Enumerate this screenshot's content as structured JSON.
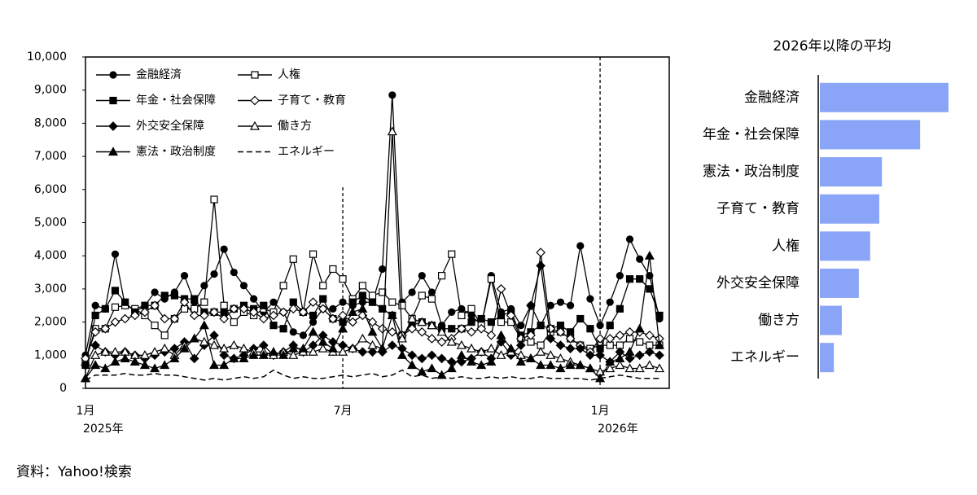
{
  "chart_data": [
    {
      "type": "line",
      "categories": [
        "1月",
        null,
        null,
        null,
        null,
        null,
        null,
        null,
        null,
        null,
        null,
        null,
        null,
        null,
        null,
        null,
        null,
        null,
        null,
        null,
        null,
        null,
        null,
        null,
        null,
        null,
        "7月",
        null,
        null,
        null,
        null,
        null,
        null,
        null,
        null,
        null,
        null,
        null,
        null,
        null,
        null,
        null,
        null,
        null,
        null,
        null,
        null,
        null,
        null,
        null,
        null,
        null,
        "1月",
        null,
        null,
        null,
        null,
        null,
        null
      ],
      "category_years": [
        "2025年",
        null,
        null,
        null,
        null,
        null,
        null,
        null,
        null,
        null,
        null,
        null,
        null,
        null,
        null,
        null,
        null,
        null,
        null,
        null,
        null,
        null,
        null,
        null,
        null,
        null,
        null,
        null,
        null,
        null,
        null,
        null,
        null,
        null,
        null,
        null,
        null,
        null,
        null,
        null,
        null,
        null,
        null,
        null,
        null,
        null,
        null,
        null,
        null,
        null,
        null,
        null,
        "2026年",
        null,
        null,
        null,
        null,
        null,
        null
      ],
      "ylim": [
        0,
        10000
      ],
      "yticks": [
        0,
        {
          "value": 1000,
          "label": "1,000"
        },
        {
          "value": 2000,
          "label": "2,000"
        },
        {
          "value": 3000,
          "label": "3,000"
        },
        {
          "value": 4000,
          "label": "4,000"
        },
        {
          "value": 5000,
          "label": "5,000"
        },
        {
          "value": 6000,
          "label": "6,000"
        },
        {
          "value": 7000,
          "label": "7,000"
        },
        {
          "value": 8000,
          "label": "8,000"
        },
        {
          "value": 9000,
          "label": "9,000"
        },
        {
          "value": 10000,
          "label": "10,000"
        }
      ],
      "legend": "top-left",
      "series": [
        {
          "name": "金融経済",
          "color": "#000000",
          "marker": "circle",
          "filled": true,
          "dashed": false,
          "values": [
            1000,
            2500,
            2400,
            4050,
            2500,
            2400,
            2500,
            2900,
            2700,
            2900,
            3400,
            2600,
            3100,
            3450,
            4200,
            3500,
            3100,
            2700,
            2300,
            2600,
            2300,
            1700,
            1600,
            2000,
            2400,
            2400,
            2600,
            2500,
            2600,
            2600,
            3600,
            8850,
            2600,
            2900,
            3400,
            2900,
            1900,
            2300,
            2400,
            2200,
            1900,
            3400,
            2300,
            2400,
            1900,
            2500,
            1900,
            2500,
            2600,
            2500,
            4300,
            2700,
            1900,
            2600,
            3400,
            4500,
            3900,
            3400,
            2100
          ]
        },
        {
          "name": "人権",
          "color": "#000000",
          "marker": "square",
          "filled": false,
          "dashed": false,
          "values": [
            800,
            1800,
            1800,
            2450,
            2500,
            2400,
            2200,
            1900,
            1600,
            2100,
            2400,
            2400,
            2600,
            5700,
            2500,
            2000,
            2300,
            2200,
            2400,
            2300,
            3100,
            3900,
            2300,
            4050,
            3100,
            3600,
            3300,
            2700,
            3100,
            2800,
            2900,
            2600,
            2500,
            2100,
            2800,
            2700,
            3400,
            4050,
            2200,
            2400,
            1900,
            3300,
            2000,
            2000,
            1500,
            1400,
            1300,
            1700,
            1700,
            1500,
            1300,
            1200,
            1300,
            1300,
            1300,
            1500,
            1400,
            1300,
            1300
          ]
        },
        {
          "name": "年金・社会保障",
          "color": "#000000",
          "marker": "square",
          "filled": true,
          "dashed": false,
          "values": [
            700,
            2200,
            2400,
            2950,
            2600,
            2300,
            2500,
            2500,
            2800,
            2800,
            2700,
            2700,
            2300,
            2300,
            2300,
            2400,
            2500,
            2400,
            2500,
            1900,
            1800,
            2600,
            2300,
            2200,
            2700,
            2100,
            2000,
            2600,
            2800,
            2600,
            2400,
            2200,
            1600,
            1900,
            2000,
            1900,
            1800,
            1800,
            1800,
            2000,
            2100,
            2000,
            2200,
            2300,
            1600,
            1700,
            1900,
            1800,
            1900,
            1700,
            2100,
            1800,
            1200,
            1900,
            2400,
            3300,
            3300,
            3000,
            2200
          ]
        },
        {
          "name": "子育て・教育",
          "color": "#000000",
          "marker": "diamond",
          "filled": false,
          "dashed": false,
          "values": [
            900,
            1700,
            1800,
            2000,
            2100,
            2200,
            2300,
            2500,
            2100,
            2100,
            2600,
            2200,
            2200,
            2300,
            2100,
            2400,
            2400,
            2300,
            2100,
            2200,
            2300,
            2400,
            2300,
            2600,
            2400,
            2100,
            2200,
            2000,
            2200,
            2000,
            1800,
            1700,
            1600,
            1800,
            1700,
            1500,
            1400,
            1500,
            1800,
            1700,
            1800,
            1600,
            3000,
            2200,
            1500,
            1600,
            4100,
            1800,
            1700,
            1500,
            1300,
            1100,
            1500,
            1500,
            1600,
            1700,
            1700,
            1600,
            1500
          ]
        },
        {
          "name": "外交安全保障",
          "color": "#000000",
          "marker": "diamond",
          "filled": true,
          "dashed": false,
          "values": [
            700,
            1300,
            1100,
            1000,
            1100,
            1000,
            900,
            1000,
            1100,
            1200,
            1400,
            900,
            1300,
            1600,
            1000,
            900,
            1000,
            1200,
            1300,
            1000,
            1100,
            1300,
            1100,
            1300,
            1600,
            1400,
            1300,
            1200,
            1100,
            1100,
            1100,
            1300,
            1200,
            1000,
            900,
            1000,
            900,
            800,
            800,
            900,
            1100,
            900,
            1400,
            1000,
            1300,
            2500,
            3700,
            1500,
            1300,
            1200,
            1200,
            1000,
            1000,
            800,
            1100,
            900,
            1000,
            1100,
            1000
          ]
        },
        {
          "name": "働き方",
          "color": "#000000",
          "marker": "triangle",
          "filled": false,
          "dashed": false,
          "values": [
            300,
            1000,
            1100,
            1100,
            1100,
            1000,
            1000,
            1100,
            1200,
            1000,
            1300,
            1500,
            1400,
            1300,
            1200,
            1300,
            1200,
            1100,
            1100,
            1000,
            1100,
            1000,
            1100,
            1100,
            1200,
            1100,
            1100,
            1200,
            1500,
            1300,
            1200,
            7750,
            1500,
            2100,
            2000,
            1900,
            1700,
            1400,
            1300,
            1200,
            1100,
            1200,
            1000,
            1100,
            1000,
            900,
            1100,
            1000,
            900,
            800,
            700,
            600,
            500,
            600,
            700,
            600,
            600,
            700,
            600
          ]
        },
        {
          "name": "憲法・政治制度",
          "color": "#000000",
          "marker": "triangle",
          "filled": true,
          "dashed": false,
          "values": [
            300,
            700,
            600,
            800,
            900,
            800,
            700,
            600,
            700,
            900,
            1200,
            1500,
            1900,
            700,
            700,
            900,
            900,
            1000,
            1000,
            1100,
            1000,
            1200,
            1200,
            1700,
            1400,
            1200,
            1800,
            2300,
            2400,
            1700,
            1200,
            2200,
            1000,
            700,
            500,
            600,
            400,
            600,
            1000,
            800,
            700,
            800,
            1600,
            1200,
            800,
            900,
            700,
            700,
            600,
            700,
            700,
            600,
            300,
            800,
            900,
            1100,
            1800,
            4000,
            1300
          ]
        },
        {
          "name": "エネルギー",
          "color": "#000000",
          "marker": "none",
          "filled": false,
          "dashed": true,
          "values": [
            250,
            400,
            400,
            400,
            450,
            400,
            400,
            450,
            400,
            400,
            350,
            300,
            250,
            300,
            250,
            300,
            350,
            300,
            350,
            550,
            400,
            300,
            350,
            300,
            300,
            350,
            400,
            350,
            400,
            450,
            350,
            400,
            550,
            350,
            400,
            300,
            350,
            300,
            350,
            300,
            300,
            350,
            300,
            350,
            300,
            300,
            350,
            300,
            300,
            300,
            300,
            250,
            300,
            350,
            400,
            350,
            300,
            300,
            300
          ]
        }
      ]
    },
    {
      "type": "barh",
      "title": "2026年以降の平均",
      "color": "#8aa5f7",
      "categories": [
        "金融経済",
        "年金・社会保障",
        "憲法・政治制度",
        "子育て・教育",
        "人権",
        "外交安全保障",
        "働き方",
        "エネルギー"
      ],
      "values": [
        3400,
        2650,
        1640,
        1570,
        1330,
        1030,
        580,
        370
      ],
      "xlim": [
        0,
        3400
      ]
    }
  ],
  "source": "資料：Yahoo!検索"
}
